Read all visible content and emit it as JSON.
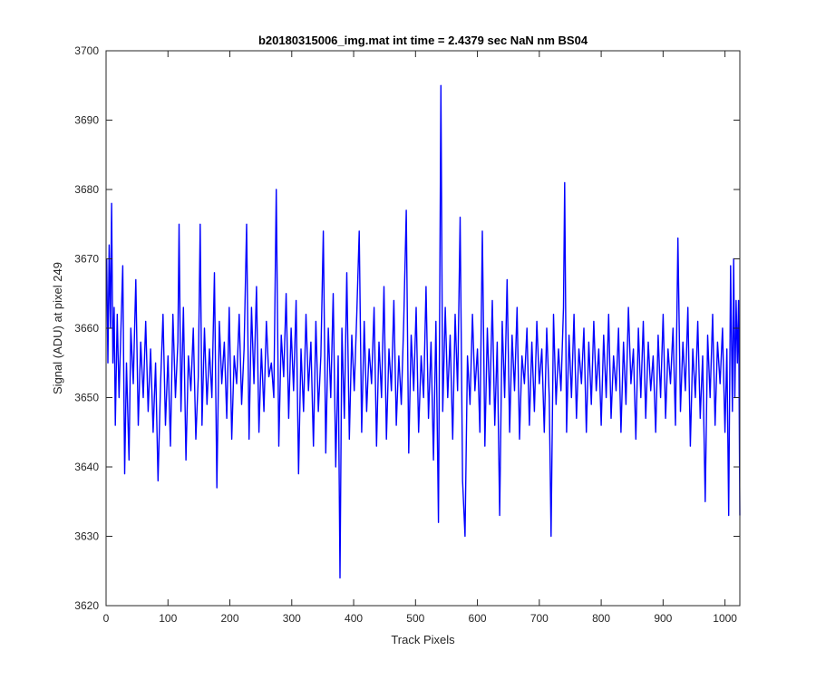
{
  "chart_data": {
    "type": "line",
    "title": "b20180315006_img.mat int time = 2.4379 sec  NaN nm BS04",
    "xlabel": "Track Pixels",
    "ylabel": "Signal (ADU) at pixel 249",
    "xlim": [
      0,
      1024
    ],
    "ylim": [
      3620,
      3700
    ],
    "xticks": [
      0,
      100,
      200,
      300,
      400,
      500,
      600,
      700,
      800,
      900,
      1000
    ],
    "yticks": [
      3620,
      3630,
      3640,
      3650,
      3660,
      3670,
      3680,
      3690,
      3700
    ],
    "grid": false,
    "legend": "none",
    "line_color": "#0000ff",
    "series": [
      {
        "points": [
          [
            1,
            3670
          ],
          [
            3,
            3655
          ],
          [
            5,
            3672
          ],
          [
            7,
            3660
          ],
          [
            9,
            3678
          ],
          [
            11,
            3655
          ],
          [
            13,
            3663
          ],
          [
            15,
            3646
          ],
          [
            18,
            3662
          ],
          [
            21,
            3650
          ],
          [
            24,
            3660
          ],
          [
            27,
            3669
          ],
          [
            30,
            3639
          ],
          [
            33,
            3655
          ],
          [
            37,
            3641
          ],
          [
            40,
            3660
          ],
          [
            44,
            3652
          ],
          [
            48,
            3667
          ],
          [
            52,
            3646
          ],
          [
            56,
            3658
          ],
          [
            60,
            3650
          ],
          [
            64,
            3661
          ],
          [
            68,
            3648
          ],
          [
            72,
            3657
          ],
          [
            76,
            3645
          ],
          [
            80,
            3655
          ],
          [
            84,
            3638
          ],
          [
            88,
            3652
          ],
          [
            92,
            3662
          ],
          [
            96,
            3646
          ],
          [
            100,
            3656
          ],
          [
            104,
            3643
          ],
          [
            108,
            3662
          ],
          [
            112,
            3650
          ],
          [
            116,
            3658
          ],
          [
            118,
            3675
          ],
          [
            121,
            3648
          ],
          [
            125,
            3663
          ],
          [
            129,
            3641
          ],
          [
            133,
            3656
          ],
          [
            137,
            3651
          ],
          [
            141,
            3660
          ],
          [
            145,
            3644
          ],
          [
            149,
            3653
          ],
          [
            152,
            3675
          ],
          [
            155,
            3646
          ],
          [
            159,
            3660
          ],
          [
            163,
            3649
          ],
          [
            167,
            3657
          ],
          [
            171,
            3650
          ],
          [
            175,
            3668
          ],
          [
            179,
            3637
          ],
          [
            183,
            3661
          ],
          [
            187,
            3652
          ],
          [
            191,
            3658
          ],
          [
            195,
            3647
          ],
          [
            199,
            3663
          ],
          [
            203,
            3644
          ],
          [
            207,
            3656
          ],
          [
            211,
            3652
          ],
          [
            215,
            3662
          ],
          [
            219,
            3649
          ],
          [
            223,
            3657
          ],
          [
            227,
            3675
          ],
          [
            231,
            3644
          ],
          [
            235,
            3663
          ],
          [
            239,
            3652
          ],
          [
            243,
            3666
          ],
          [
            247,
            3645
          ],
          [
            251,
            3657
          ],
          [
            255,
            3648
          ],
          [
            259,
            3661
          ],
          [
            263,
            3653
          ],
          [
            267,
            3655
          ],
          [
            271,
            3650
          ],
          [
            275,
            3680
          ],
          [
            279,
            3643
          ],
          [
            283,
            3659
          ],
          [
            287,
            3653
          ],
          [
            291,
            3665
          ],
          [
            295,
            3647
          ],
          [
            299,
            3660
          ],
          [
            303,
            3651
          ],
          [
            307,
            3664
          ],
          [
            311,
            3639
          ],
          [
            315,
            3657
          ],
          [
            319,
            3648
          ],
          [
            323,
            3662
          ],
          [
            327,
            3651
          ],
          [
            331,
            3658
          ],
          [
            335,
            3643
          ],
          [
            339,
            3661
          ],
          [
            343,
            3648
          ],
          [
            347,
            3656
          ],
          [
            351,
            3674
          ],
          [
            355,
            3642
          ],
          [
            359,
            3660
          ],
          [
            363,
            3650
          ],
          [
            367,
            3665
          ],
          [
            371,
            3640
          ],
          [
            375,
            3656
          ],
          [
            378,
            3624
          ],
          [
            381,
            3660
          ],
          [
            385,
            3647
          ],
          [
            389,
            3668
          ],
          [
            393,
            3644
          ],
          [
            397,
            3659
          ],
          [
            401,
            3651
          ],
          [
            405,
            3662
          ],
          [
            409,
            3674
          ],
          [
            413,
            3645
          ],
          [
            417,
            3661
          ],
          [
            421,
            3648
          ],
          [
            425,
            3657
          ],
          [
            429,
            3652
          ],
          [
            433,
            3663
          ],
          [
            437,
            3643
          ],
          [
            441,
            3658
          ],
          [
            445,
            3650
          ],
          [
            449,
            3666
          ],
          [
            453,
            3644
          ],
          [
            457,
            3657
          ],
          [
            461,
            3651
          ],
          [
            465,
            3664
          ],
          [
            469,
            3646
          ],
          [
            473,
            3656
          ],
          [
            477,
            3649
          ],
          [
            481,
            3661
          ],
          [
            485,
            3677
          ],
          [
            489,
            3642
          ],
          [
            493,
            3659
          ],
          [
            497,
            3651
          ],
          [
            501,
            3663
          ],
          [
            505,
            3645
          ],
          [
            509,
            3656
          ],
          [
            513,
            3650
          ],
          [
            517,
            3666
          ],
          [
            521,
            3647
          ],
          [
            525,
            3658
          ],
          [
            529,
            3641
          ],
          [
            533,
            3661
          ],
          [
            537,
            3632
          ],
          [
            541,
            3695
          ],
          [
            544,
            3648
          ],
          [
            548,
            3663
          ],
          [
            552,
            3650
          ],
          [
            556,
            3659
          ],
          [
            560,
            3644
          ],
          [
            564,
            3662
          ],
          [
            568,
            3651
          ],
          [
            572,
            3676
          ],
          [
            576,
            3638
          ],
          [
            580,
            3630
          ],
          [
            584,
            3656
          ],
          [
            588,
            3649
          ],
          [
            592,
            3662
          ],
          [
            596,
            3651
          ],
          [
            600,
            3657
          ],
          [
            604,
            3645
          ],
          [
            608,
            3674
          ],
          [
            612,
            3643
          ],
          [
            616,
            3660
          ],
          [
            620,
            3649
          ],
          [
            624,
            3664
          ],
          [
            628,
            3646
          ],
          [
            632,
            3658
          ],
          [
            636,
            3633
          ],
          [
            640,
            3661
          ],
          [
            644,
            3650
          ],
          [
            648,
            3667
          ],
          [
            652,
            3645
          ],
          [
            656,
            3659
          ],
          [
            660,
            3651
          ],
          [
            664,
            3663
          ],
          [
            668,
            3644
          ],
          [
            672,
            3656
          ],
          [
            676,
            3652
          ],
          [
            680,
            3660
          ],
          [
            684,
            3646
          ],
          [
            688,
            3658
          ],
          [
            692,
            3648
          ],
          [
            696,
            3661
          ],
          [
            700,
            3652
          ],
          [
            704,
            3657
          ],
          [
            708,
            3645
          ],
          [
            712,
            3660
          ],
          [
            716,
            3650
          ],
          [
            719,
            3630
          ],
          [
            723,
            3662
          ],
          [
            727,
            3649
          ],
          [
            731,
            3657
          ],
          [
            735,
            3651
          ],
          [
            739,
            3663
          ],
          [
            741,
            3681
          ],
          [
            744,
            3645
          ],
          [
            748,
            3659
          ],
          [
            752,
            3650
          ],
          [
            756,
            3662
          ],
          [
            760,
            3647
          ],
          [
            764,
            3657
          ],
          [
            768,
            3652
          ],
          [
            772,
            3660
          ],
          [
            776,
            3645
          ],
          [
            780,
            3658
          ],
          [
            784,
            3649
          ],
          [
            788,
            3661
          ],
          [
            792,
            3651
          ],
          [
            796,
            3657
          ],
          [
            800,
            3646
          ],
          [
            804,
            3659
          ],
          [
            808,
            3650
          ],
          [
            812,
            3662
          ],
          [
            816,
            3647
          ],
          [
            820,
            3656
          ],
          [
            824,
            3651
          ],
          [
            828,
            3660
          ],
          [
            832,
            3645
          ],
          [
            836,
            3658
          ],
          [
            840,
            3649
          ],
          [
            844,
            3663
          ],
          [
            848,
            3652
          ],
          [
            852,
            3657
          ],
          [
            856,
            3644
          ],
          [
            860,
            3660
          ],
          [
            864,
            3650
          ],
          [
            868,
            3661
          ],
          [
            872,
            3647
          ],
          [
            876,
            3658
          ],
          [
            880,
            3651
          ],
          [
            884,
            3656
          ],
          [
            888,
            3645
          ],
          [
            892,
            3659
          ],
          [
            896,
            3650
          ],
          [
            900,
            3662
          ],
          [
            904,
            3647
          ],
          [
            908,
            3657
          ],
          [
            912,
            3652
          ],
          [
            916,
            3660
          ],
          [
            920,
            3646
          ],
          [
            924,
            3673
          ],
          [
            928,
            3648
          ],
          [
            932,
            3658
          ],
          [
            936,
            3651
          ],
          [
            940,
            3663
          ],
          [
            944,
            3643
          ],
          [
            948,
            3657
          ],
          [
            952,
            3650
          ],
          [
            956,
            3661
          ],
          [
            960,
            3647
          ],
          [
            964,
            3656
          ],
          [
            968,
            3635
          ],
          [
            972,
            3659
          ],
          [
            976,
            3650
          ],
          [
            980,
            3662
          ],
          [
            984,
            3646
          ],
          [
            988,
            3658
          ],
          [
            992,
            3652
          ],
          [
            996,
            3660
          ],
          [
            1000,
            3645
          ],
          [
            1003,
            3657
          ],
          [
            1006,
            3633
          ],
          [
            1009,
            3669
          ],
          [
            1012,
            3648
          ],
          [
            1014,
            3670
          ],
          [
            1016,
            3650
          ],
          [
            1018,
            3664
          ],
          [
            1020,
            3655
          ],
          [
            1022,
            3664
          ],
          [
            1024,
            3633
          ]
        ]
      }
    ]
  }
}
